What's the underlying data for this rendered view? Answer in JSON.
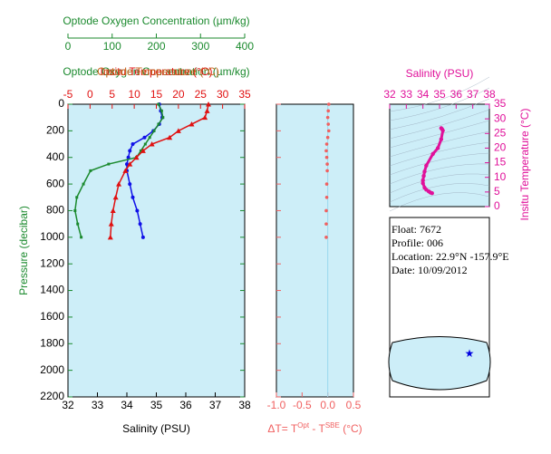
{
  "chart_data": [
    {
      "type": "line",
      "xlabel": "Salinity (PSU)",
      "ylabel": "Pressure (decibar)",
      "xlim": [
        32,
        38
      ],
      "xticks": [
        32,
        33,
        34,
        35,
        36,
        37,
        38
      ],
      "ylim": [
        0,
        2200
      ],
      "yticks": [
        0,
        200,
        400,
        600,
        800,
        1000,
        1200,
        1400,
        1600,
        1800,
        2000,
        2200
      ],
      "x2label": "Optode Oxygen Concentration (µm/kg)",
      "x2lim": [
        0,
        400
      ],
      "x2ticks": [
        0,
        100,
        200,
        300,
        400
      ],
      "x2color": "#1b8a2e",
      "x3label": "Insitu Temperature (°C)",
      "x3lim": [
        -5,
        35
      ],
      "x3ticks": [
        -5,
        0,
        5,
        10,
        15,
        20,
        25,
        30,
        35
      ],
      "x3color": "#e01010",
      "x4label": "Optode Temperature (°C)",
      "x4color": "#c8641e",
      "y": [
        0,
        50,
        100,
        150,
        200,
        250,
        300,
        350,
        400,
        450,
        500,
        600,
        700,
        800,
        900,
        1000
      ],
      "series": [
        {
          "axis": "x",
          "color": "#1010e8",
          "values": [
            35.1,
            35.15,
            35.2,
            35.1,
            34.9,
            34.6,
            34.2,
            34.1,
            34.05,
            34.0,
            34.0,
            34.1,
            34.2,
            34.35,
            34.45,
            34.55
          ]
        },
        {
          "axis": "x2",
          "color": "#1b8a2e",
          "values": [
            205,
            212,
            215,
            205,
            195,
            185,
            175,
            165,
            155,
            92,
            51,
            35,
            20,
            16,
            22,
            30
          ]
        },
        {
          "axis": "x3",
          "color": "#e01010",
          "values": [
            26.8,
            26.5,
            26,
            23,
            20,
            18,
            14,
            12,
            10.5,
            9,
            8,
            6.5,
            5.8,
            5.2,
            4.8,
            4.6
          ]
        }
      ]
    },
    {
      "type": "scatter",
      "xlabel": [
        "ΔT= T",
        "Opt",
        " - T",
        "SBE",
        " (°C)"
      ],
      "xlim": [
        -1.0,
        0.5
      ],
      "xticks": [
        {
          "value": -1.0,
          "label": "-1.0"
        },
        {
          "value": -0.5,
          "label": "-0.5"
        },
        {
          "value": 0.0,
          "label": "0.0"
        },
        {
          "value": 0.5,
          "label": "0.5"
        }
      ],
      "color": "#f06060",
      "y": [
        0,
        50,
        100,
        150,
        200,
        250,
        300,
        350,
        400,
        450,
        500,
        600,
        700,
        800,
        900,
        1000
      ],
      "values": [
        0.02,
        0.01,
        0.0,
        0.01,
        0.02,
        0.0,
        -0.02,
        -0.03,
        -0.02,
        -0.01,
        -0.01,
        -0.02,
        -0.02,
        -0.03,
        -0.03,
        -0.03
      ]
    },
    {
      "type": "ts",
      "xlabel": "Salinity (PSU)",
      "ylabel": "Insitu Temperature (°C)",
      "color": "#e0109a",
      "xlim": [
        32,
        38
      ],
      "xticks": [
        32,
        33,
        34,
        35,
        36,
        37,
        38
      ],
      "ylim": [
        0,
        35
      ],
      "yticks": [
        0,
        5,
        10,
        15,
        20,
        25,
        30,
        35
      ],
      "x": [
        35.1,
        35.15,
        35.2,
        35.1,
        34.9,
        34.6,
        34.2,
        34.1,
        34.05,
        34.0,
        34.0,
        34.1,
        34.2,
        34.35,
        34.45,
        34.55
      ],
      "values": [
        26.8,
        26.5,
        26,
        23,
        20,
        18,
        14,
        12,
        10.5,
        9,
        8,
        6.5,
        5.8,
        5.2,
        4.8,
        4.6
      ]
    }
  ],
  "info": {
    "float": "Float:  7672",
    "profile": "Profile:  006",
    "location": "Location:  22.9°N  -157.9°E",
    "date": "Date:  10/09/2012"
  }
}
